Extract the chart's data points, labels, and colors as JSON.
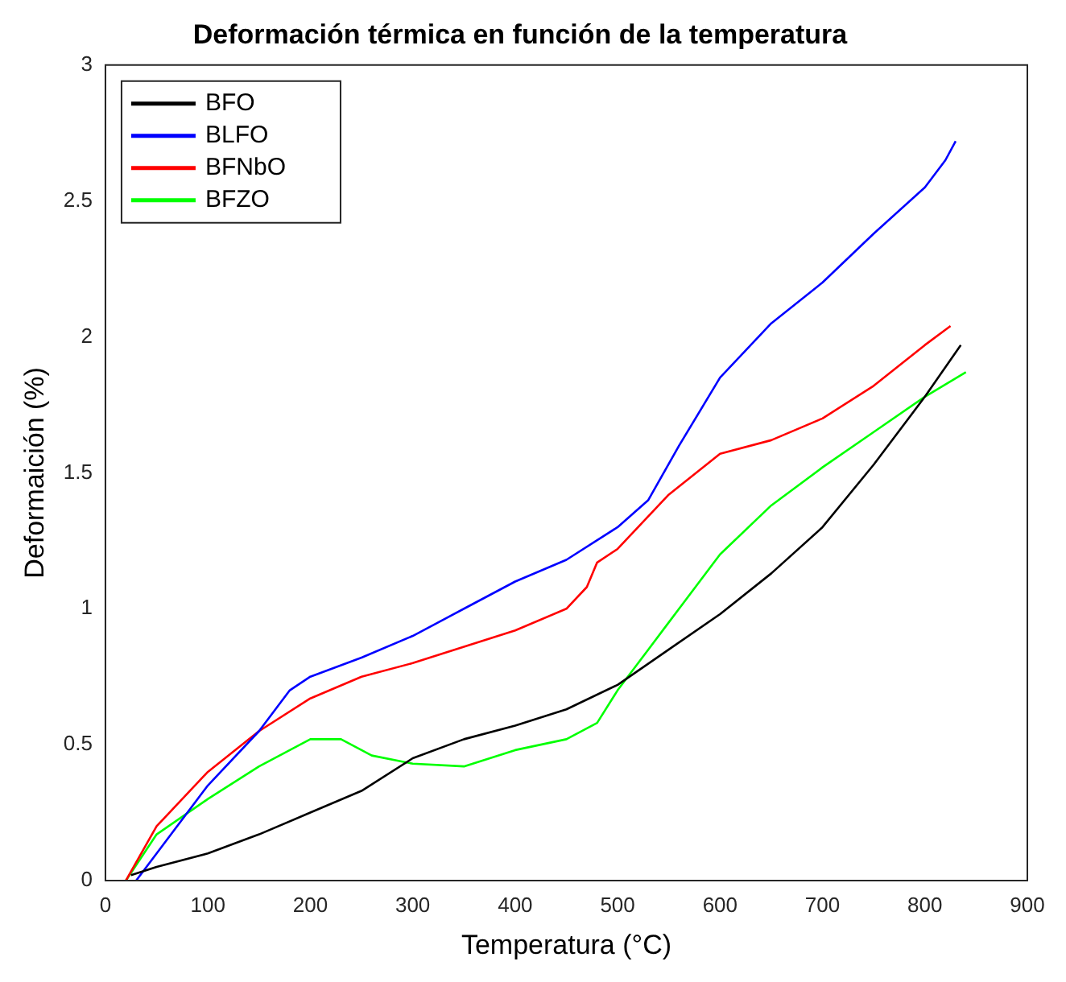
{
  "chart_data": {
    "type": "line",
    "title": "Deformación térmica en función de la temperatura",
    "xlabel": "Temperatura (°C)",
    "ylabel": "Deformaición (%)",
    "xlim": [
      0,
      900
    ],
    "xticks": [
      0,
      100,
      200,
      300,
      400,
      500,
      600,
      700,
      800,
      900
    ],
    "ylim": [
      0,
      3
    ],
    "yticks": [
      0,
      0.5,
      1,
      1.5,
      2,
      2.5,
      3
    ],
    "grid": false,
    "legend": "top left",
    "marker": "none",
    "line_style": "solid",
    "series": [
      {
        "name": "BFO",
        "color": "#000000",
        "x": [
          25,
          50,
          100,
          150,
          200,
          250,
          300,
          350,
          400,
          450,
          500,
          550,
          600,
          650,
          700,
          750,
          800,
          835
        ],
        "values": [
          0.02,
          0.05,
          0.1,
          0.17,
          0.25,
          0.33,
          0.45,
          0.52,
          0.57,
          0.63,
          0.72,
          0.85,
          0.98,
          1.13,
          1.3,
          1.53,
          1.78,
          1.97
        ]
      },
      {
        "name": "BLFO",
        "color": "#0000ff",
        "x": [
          30,
          50,
          100,
          150,
          180,
          200,
          250,
          300,
          350,
          400,
          450,
          500,
          530,
          560,
          600,
          650,
          700,
          750,
          800,
          820,
          830
        ],
        "values": [
          0.0,
          0.1,
          0.35,
          0.55,
          0.7,
          0.75,
          0.82,
          0.9,
          1.0,
          1.1,
          1.18,
          1.3,
          1.4,
          1.6,
          1.85,
          2.05,
          2.2,
          2.38,
          2.55,
          2.65,
          2.72
        ]
      },
      {
        "name": "BFNbO",
        "color": "#ff0000",
        "x": [
          20,
          50,
          100,
          150,
          200,
          250,
          300,
          350,
          400,
          450,
          470,
          480,
          500,
          550,
          600,
          650,
          700,
          750,
          800,
          825
        ],
        "values": [
          0.0,
          0.2,
          0.4,
          0.55,
          0.67,
          0.75,
          0.8,
          0.86,
          0.92,
          1.0,
          1.08,
          1.17,
          1.22,
          1.42,
          1.57,
          1.62,
          1.7,
          1.82,
          1.97,
          2.04
        ]
      },
      {
        "name": "BFZO",
        "color": "#00ff00",
        "x": [
          20,
          50,
          100,
          150,
          200,
          230,
          260,
          300,
          350,
          400,
          450,
          480,
          500,
          530,
          550,
          600,
          650,
          700,
          750,
          800,
          840
        ],
        "values": [
          0.0,
          0.17,
          0.3,
          0.42,
          0.52,
          0.52,
          0.46,
          0.43,
          0.42,
          0.48,
          0.52,
          0.58,
          0.7,
          0.85,
          0.95,
          1.2,
          1.38,
          1.52,
          1.65,
          1.78,
          1.87
        ]
      }
    ]
  }
}
